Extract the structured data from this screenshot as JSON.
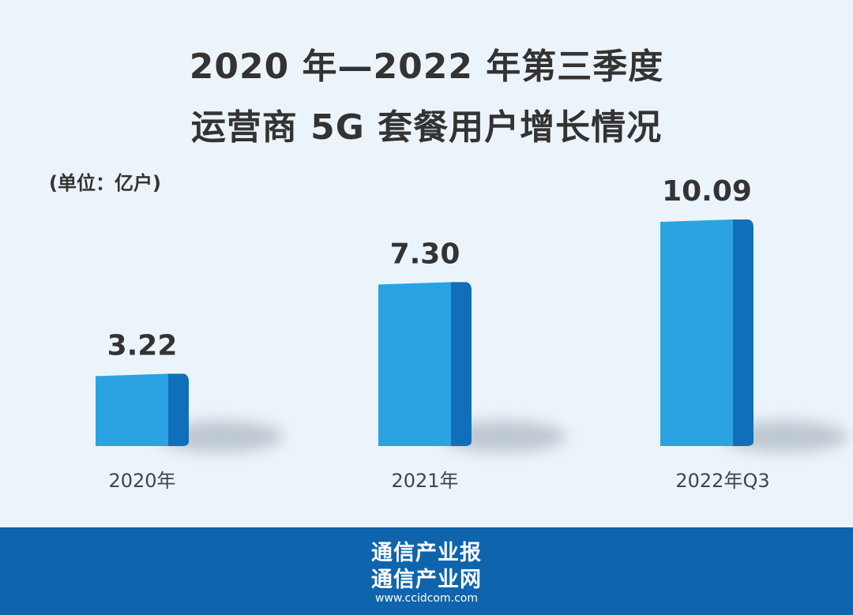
{
  "title_line1": "2020 年—2022 年第三季度",
  "title_line2": "运营商 5G 套餐用户增长情况",
  "unit_label": "(单位：亿户)",
  "footer": {
    "line1": "通信产业报",
    "line2": "通信产业网",
    "website": "www.ccidcom.com"
  },
  "colors": {
    "background": "#ecf4fb",
    "bar_front": "#2ba3e2",
    "bar_side": "#0f6fba",
    "footer": "#0f64ae"
  },
  "chart_data": {
    "type": "bar",
    "title": "2020 年—2022 年第三季度 运营商 5G 套餐用户增长情况",
    "unit": "(单位：亿户)",
    "categories": [
      "2020年",
      "2021年",
      "2022年Q3"
    ],
    "values": [
      3.22,
      7.3,
      10.09
    ],
    "data_labels": [
      "3.22",
      "7.30",
      "10.09"
    ],
    "ylim": [
      0,
      10.09
    ],
    "grid": false,
    "legend": "none"
  }
}
